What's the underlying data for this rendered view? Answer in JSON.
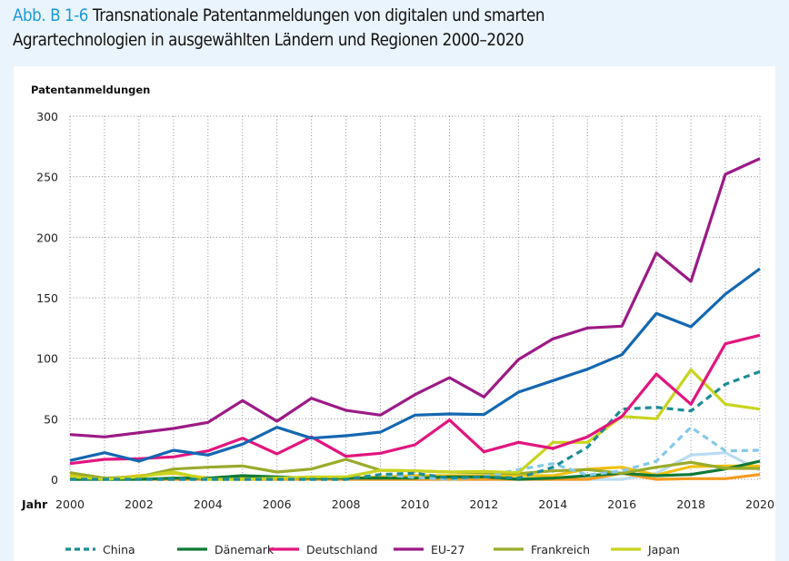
{
  "figure": {
    "number": "Abb. B 1-6",
    "title_line1": "Transnationale Patentanmeldungen von digitalen und smarten",
    "title_line2": "Agrartechnologien in ausgewählten Ländern und Regionen 2000–2020"
  },
  "chart_data": {
    "type": "line",
    "title": "Transnationale Patentanmeldungen von digitalen und smarten Agrartechnologien in ausgewählten Ländern und Regionen 2000–2020",
    "ylabel": "Patentanmeldungen",
    "xlabel": "Jahr",
    "x": [
      2000,
      2001,
      2002,
      2003,
      2004,
      2005,
      2006,
      2007,
      2008,
      2009,
      2010,
      2011,
      2012,
      2013,
      2014,
      2015,
      2016,
      2017,
      2018,
      2019,
      2020
    ],
    "xticks": [
      "2000",
      "2002",
      "2004",
      "2006",
      "2008",
      "2010",
      "2012",
      "2014",
      "2016",
      "2018",
      "2020"
    ],
    "yticks": [
      "0",
      "50",
      "100",
      "150",
      "200",
      "250",
      "300"
    ],
    "ylim": [
      0,
      300
    ],
    "xlim": [
      2000,
      2020
    ],
    "grid": "dotted",
    "legend_position": "bottom",
    "series": [
      {
        "name": "",
        "color": "#b9dcf2",
        "dashed": false,
        "values": [
          0,
          0,
          0,
          0,
          0,
          0,
          0,
          0,
          0,
          0,
          0,
          0,
          0,
          0,
          0,
          0,
          0,
          5,
          20,
          22,
          7.5
        ]
      },
      {
        "name": "",
        "color": "#f39a1e",
        "dashed": false,
        "values": [
          0,
          0,
          0,
          0,
          0,
          0,
          0,
          0,
          0,
          0,
          0,
          0,
          0,
          0,
          0,
          0,
          5,
          0,
          0.5,
          0.5,
          4
        ]
      },
      {
        "name": "",
        "color": "#f0c010",
        "dashed": false,
        "values": [
          3,
          0,
          3,
          5,
          1,
          1,
          1,
          1,
          1,
          2,
          3,
          3,
          3,
          3,
          3,
          8.5,
          10,
          3.5,
          10.5,
          11,
          11
        ]
      },
      {
        "name": "Dänemark",
        "color": "#0f7a35",
        "dashed": false,
        "values": [
          0,
          0,
          0,
          1,
          1,
          3,
          2,
          1,
          1,
          1,
          1,
          2,
          2,
          0,
          1,
          3,
          5,
          3,
          4,
          8.5,
          15
        ]
      },
      {
        "name": "Frankreich",
        "color": "#9aab2a",
        "dashed": false,
        "values": [
          5.5,
          1,
          2,
          8.5,
          10,
          11,
          6,
          8.5,
          16.5,
          7.5,
          7,
          6,
          5.5,
          4.7,
          7,
          8,
          5,
          10,
          14,
          9,
          9
        ]
      },
      {
        "name": "",
        "color": "#86c8ea",
        "dashed": true,
        "values": [
          0,
          0,
          0,
          0,
          0,
          0,
          0,
          0,
          0,
          4,
          1.5,
          0,
          2,
          8,
          13,
          3.5,
          7,
          15,
          43,
          23.5,
          24
        ]
      },
      {
        "name": "Japan",
        "color": "#c8d41e",
        "dashed": false,
        "values": [
          2,
          0,
          2,
          6,
          0,
          0,
          1,
          2,
          2,
          7.5,
          7,
          6,
          6.5,
          5.5,
          30.5,
          30.5,
          52,
          50,
          90.5,
          62,
          58
        ]
      },
      {
        "name": "China",
        "color": "#1b8c96",
        "dashed": true,
        "values": [
          0,
          0,
          0,
          0,
          0,
          0,
          0,
          0,
          0,
          4,
          5,
          1,
          2,
          1,
          10,
          26.5,
          58,
          59.5,
          56.5,
          78.5,
          89
        ]
      },
      {
        "name": "Deutschland",
        "color": "#e2157f",
        "dashed": false,
        "values": [
          13,
          16.5,
          17,
          18.5,
          23.5,
          34,
          21,
          35,
          19,
          21.5,
          28.5,
          49,
          22.7,
          30.5,
          25.5,
          35,
          52,
          87,
          62,
          112,
          119
        ]
      },
      {
        "name": "",
        "color": "#1467b0",
        "dashed": false,
        "values": [
          15.5,
          22,
          15,
          24,
          20,
          29,
          43,
          34,
          36,
          39,
          53,
          54,
          53.5,
          72,
          81.5,
          91,
          103,
          137,
          126,
          153,
          174
        ]
      },
      {
        "name": "EU-27",
        "color": "#9c1a85",
        "dashed": false,
        "values": [
          37,
          35,
          38.5,
          42,
          47,
          65,
          48,
          67,
          57,
          53,
          70,
          84,
          68,
          99,
          116,
          125,
          126.5,
          187,
          163.5,
          252,
          265
        ]
      }
    ],
    "legend": [
      {
        "name": "China",
        "color": "#1b8c96",
        "dashed": true
      },
      {
        "name": "Dänemark",
        "color": "#0f7a35",
        "dashed": false
      },
      {
        "name": "Deutschland",
        "color": "#e2157f",
        "dashed": false
      },
      {
        "name": "EU-27",
        "color": "#9c1a85",
        "dashed": false
      },
      {
        "name": "Frankreich",
        "color": "#9aab2a",
        "dashed": false
      },
      {
        "name": "Japan",
        "color": "#c8d41e",
        "dashed": false
      }
    ]
  }
}
